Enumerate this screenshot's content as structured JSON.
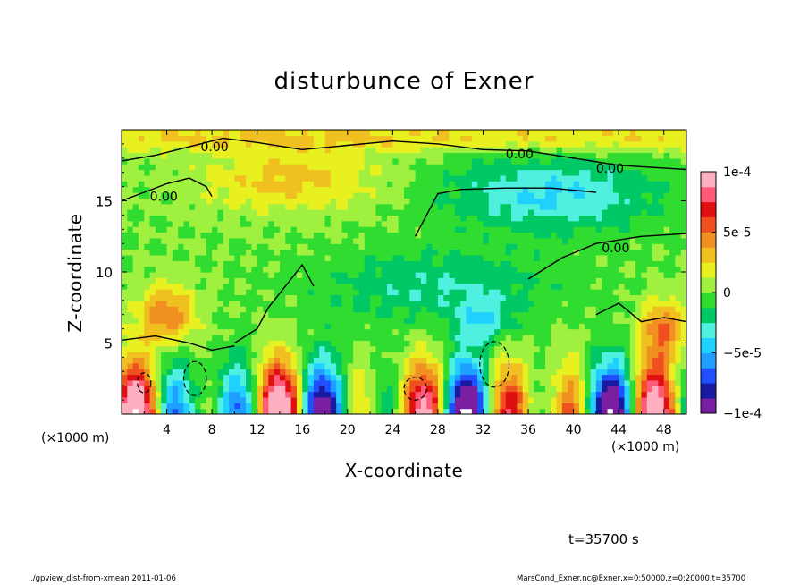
{
  "chart_data": {
    "type": "heatmap",
    "title": "disturbunce of Exner",
    "xlabel": "X-coordinate",
    "ylabel": "Z-coordinate",
    "x_unit_note": "(×1000 m)",
    "x_ticks": [
      4,
      8,
      12,
      16,
      20,
      24,
      28,
      32,
      36,
      40,
      44,
      48
    ],
    "x_range": [
      0,
      50
    ],
    "y_ticks": [
      5,
      10,
      15
    ],
    "y_range": [
      0,
      20
    ],
    "colorbar": {
      "range": [
        -0.0001,
        0.0001
      ],
      "tick_labels": [
        "1e-4",
        "5e-5",
        "0",
        "−5e-5",
        "−1e-4"
      ],
      "colors": [
        "#7a1fa2",
        "#1a1aa0",
        "#1f4fff",
        "#1f9fff",
        "#20d0ff",
        "#50f0e0",
        "#00c864",
        "#30dc30",
        "#a0f040",
        "#e8f020",
        "#f0c020",
        "#f09020",
        "#f05020",
        "#e01010",
        "#ff5a78",
        "#ffb0c0"
      ]
    },
    "contour_labels": [
      "0.00",
      "0.00",
      "0.00",
      "0.00",
      "0.00"
    ]
  },
  "annotations": {
    "time": "t=35700 s",
    "footer_left": "./gpview_dist-from-xmean  2011-01-06",
    "footer_right": "MarsCond_Exner.nc@Exner,x=0:50000,z=0:20000,t=35700"
  }
}
